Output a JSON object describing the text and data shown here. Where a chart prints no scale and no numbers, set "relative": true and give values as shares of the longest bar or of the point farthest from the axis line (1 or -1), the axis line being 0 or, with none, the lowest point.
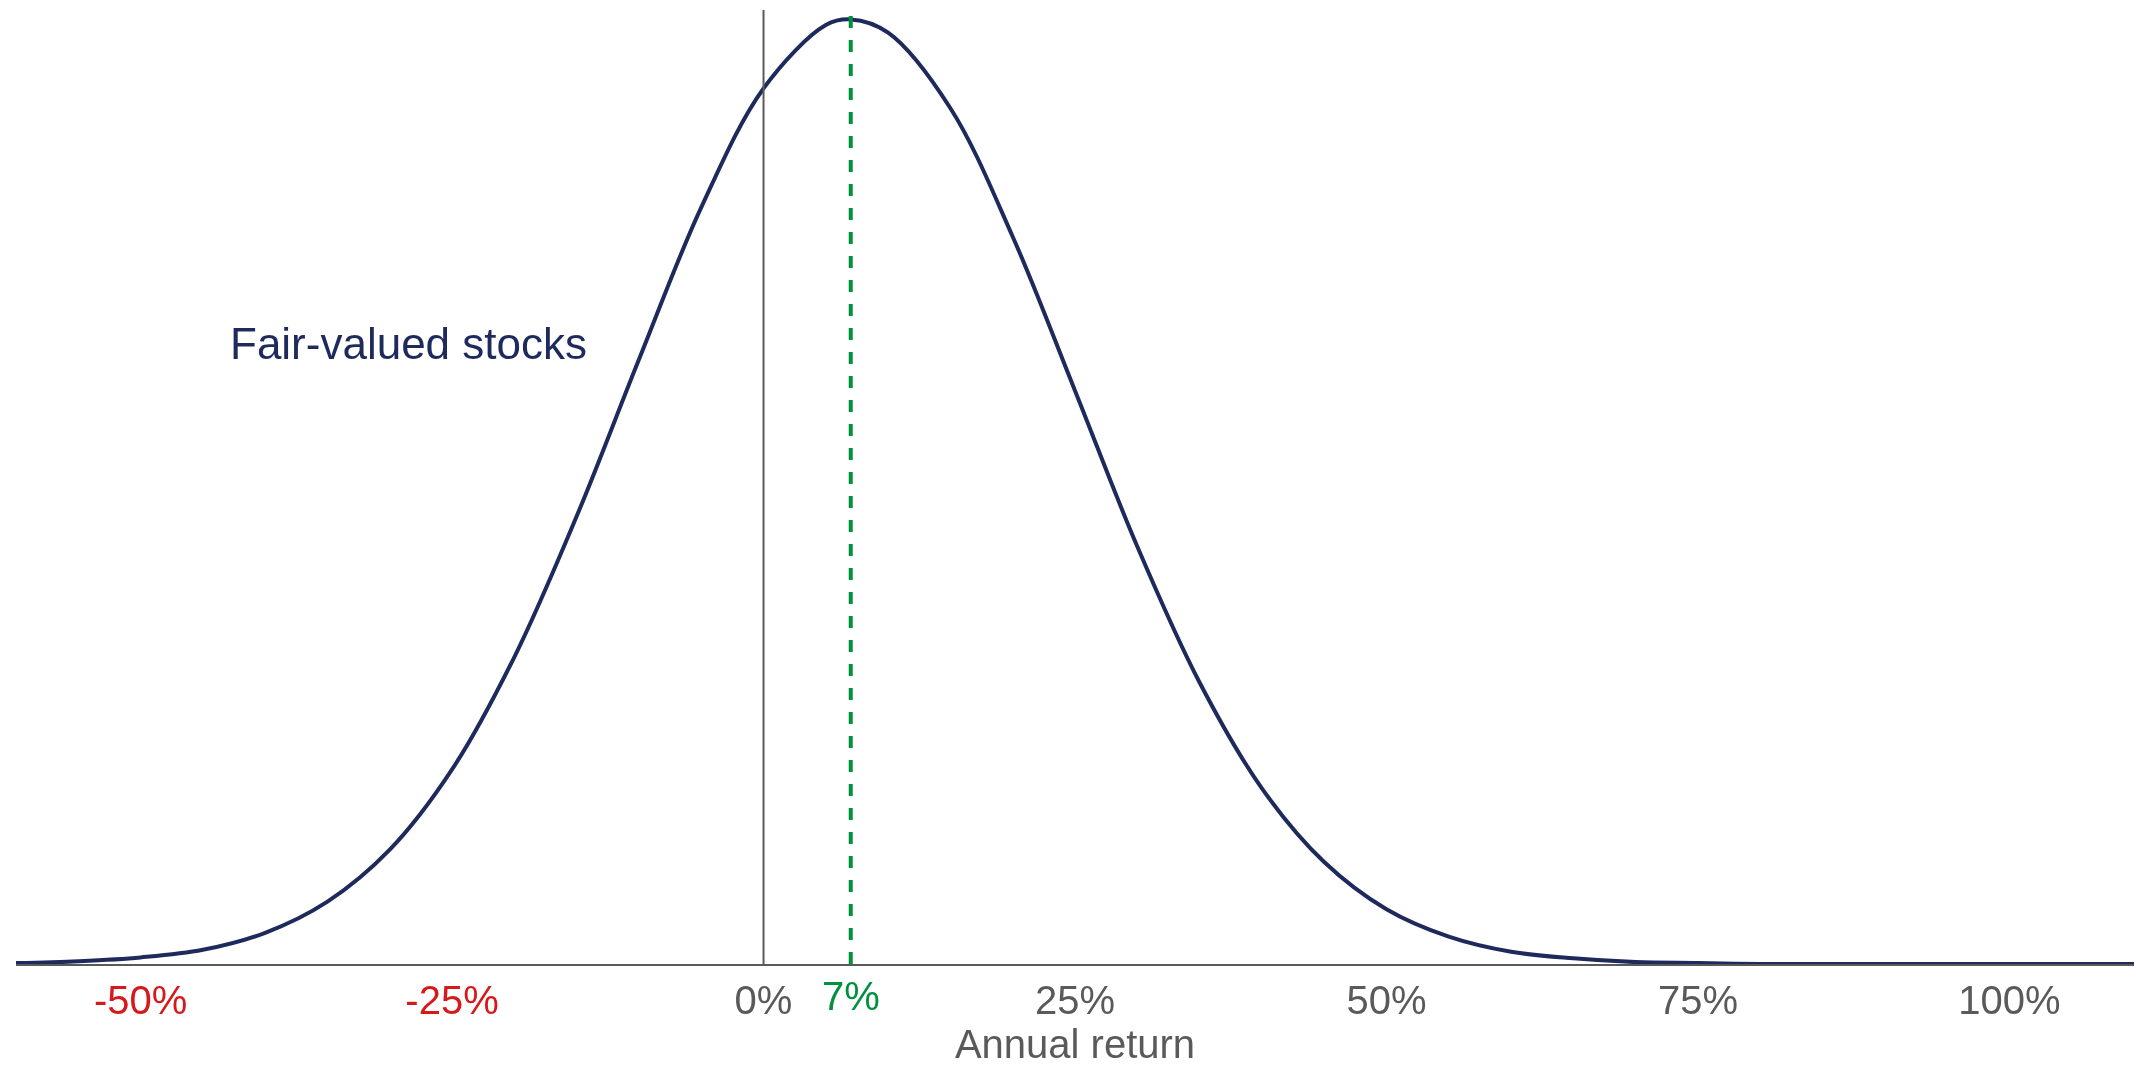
{
  "chart_data": {
    "type": "line",
    "relative": true,
    "xlabel": "Annual return",
    "xlim": [
      -60,
      110
    ],
    "xticks": [
      {
        "value": -50,
        "label": "-50%"
      },
      {
        "value": -25,
        "label": "-25%"
      },
      {
        "value": 0,
        "label": "0%"
      },
      {
        "value": 25,
        "label": "25%"
      },
      {
        "value": 50,
        "label": "50%"
      },
      {
        "value": 75,
        "label": "75%"
      },
      {
        "value": 100,
        "label": "100%"
      }
    ],
    "x": [
      -60,
      -55,
      -50,
      -45,
      -40,
      -35,
      -30,
      -25,
      -20,
      -15,
      -10,
      -5,
      0,
      5,
      7,
      10,
      15,
      20,
      25,
      30,
      35,
      40,
      45,
      50,
      55,
      60,
      65,
      70,
      75,
      80,
      85,
      90,
      95,
      100,
      105,
      110
    ],
    "series": [
      {
        "name": "Fair-valued stocks",
        "color": "#1f2a5c",
        "values": [
          0.001,
          0.003,
          0.007,
          0.015,
          0.033,
          0.066,
          0.121,
          0.206,
          0.325,
          0.474,
          0.64,
          0.801,
          0.927,
          0.994,
          1,
          0.986,
          0.906,
          0.77,
          0.607,
          0.442,
          0.298,
          0.186,
          0.108,
          0.058,
          0.029,
          0.013,
          0.006,
          0.002,
          0.001,
          0,
          0,
          0,
          0,
          0,
          0,
          0
        ]
      }
    ],
    "ref_lines": [
      {
        "axis": "x",
        "value": 0,
        "color": "#5a5a5a",
        "line_style": "solid"
      },
      {
        "axis": "x",
        "value": 7,
        "label": "7%",
        "color": "#00913f",
        "line_style": "dashed"
      }
    ],
    "grid": false,
    "legend": false,
    "marker": "none",
    "line_style": "solid"
  }
}
